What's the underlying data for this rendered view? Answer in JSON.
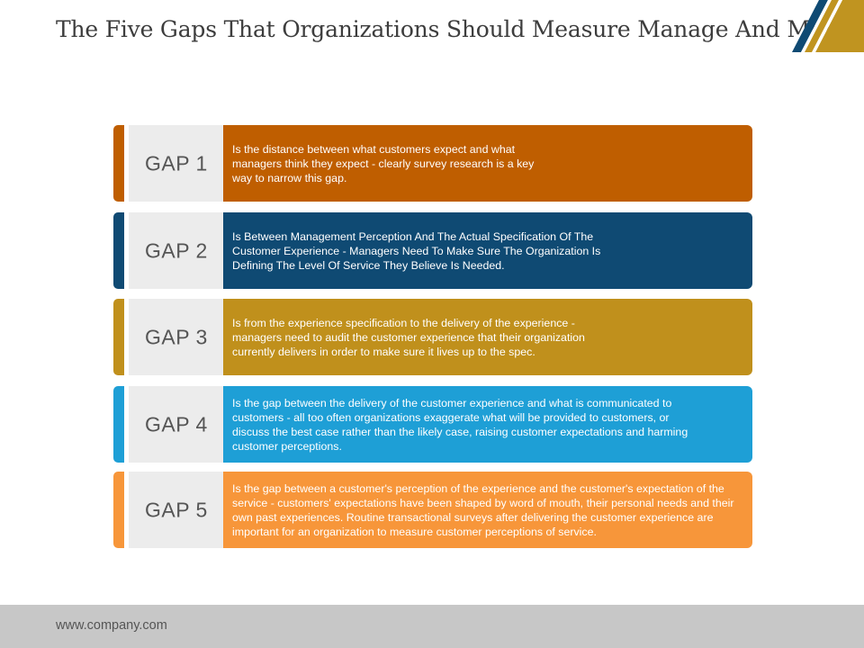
{
  "slide": {
    "title": "The Five Gaps That Organizations Should Measure Manage And Minimize",
    "footer": "www.company.com"
  },
  "colors": {
    "corner_gold": "#c09420",
    "corner_navy": "#0f4a73"
  },
  "gaps": [
    {
      "label": "GAP 1",
      "description": "Is the distance between what customers expect and what managers think they expect - clearly survey research is a key way to narrow this gap.",
      "color": "#bf5e00"
    },
    {
      "label": "GAP 2",
      "description": "Is Between Management Perception And The Actual Specification Of The Customer Experience - Managers Need To Make Sure The Organization Is Defining The Level Of Service They Believe Is Needed.",
      "color": "#0f4a73"
    },
    {
      "label": "GAP 3",
      "description": "Is from the experience specification to the delivery of the experience - managers need to audit the customer experience that their organization currently delivers in order to make sure it lives up to the spec.",
      "color": "#c0901c"
    },
    {
      "label": "GAP 4",
      "description": "Is the gap between the delivery of the customer experience and what is communicated to customers - all too often organizations exaggerate what will be provided to customers, or discuss the best case rather than the likely case, raising customer expectations and harming customer perceptions.",
      "color": "#1e9fd6"
    },
    {
      "label": "GAP 5",
      "description": "Is the gap between a customer's perception of the experience and the customer's expectation of the service - customers' expectations have been shaped by word of mouth, their personal needs and their own past experiences. Routine transactional surveys after delivering the customer experience are important for an organization to measure customer perceptions of service.",
      "color": "#f7963a"
    }
  ]
}
